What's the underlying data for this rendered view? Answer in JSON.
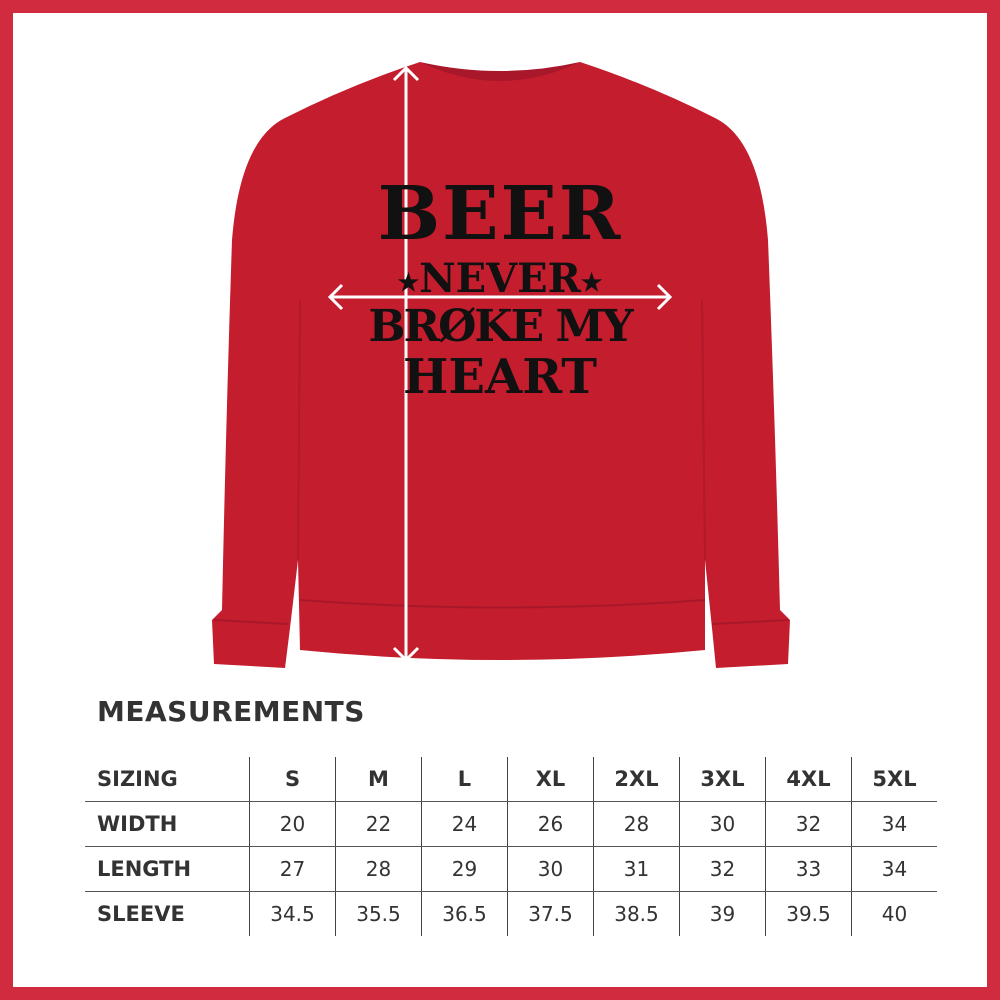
{
  "colors": {
    "border": "#d12b3f",
    "garment": "#c41d2e",
    "print": "#111111",
    "text": "#333333"
  },
  "print_text": {
    "line1": "BEER",
    "line2": "NEVER",
    "line3": "BRØKE MY",
    "line4": "HEART",
    "star": "★"
  },
  "title": "MEASUREMENTS",
  "table": {
    "header": {
      "label": "SIZING",
      "sizes": [
        "S",
        "M",
        "L",
        "XL",
        "2XL",
        "3XL",
        "4XL",
        "5XL"
      ]
    },
    "rows": [
      {
        "label": "WIDTH",
        "values": [
          "20",
          "22",
          "24",
          "26",
          "28",
          "30",
          "32",
          "34"
        ]
      },
      {
        "label": "LENGTH",
        "values": [
          "27",
          "28",
          "29",
          "30",
          "31",
          "32",
          "33",
          "34"
        ]
      },
      {
        "label": "SLEEVE",
        "values": [
          "34.5",
          "35.5",
          "36.5",
          "37.5",
          "38.5",
          "39",
          "39.5",
          "40"
        ]
      }
    ]
  }
}
